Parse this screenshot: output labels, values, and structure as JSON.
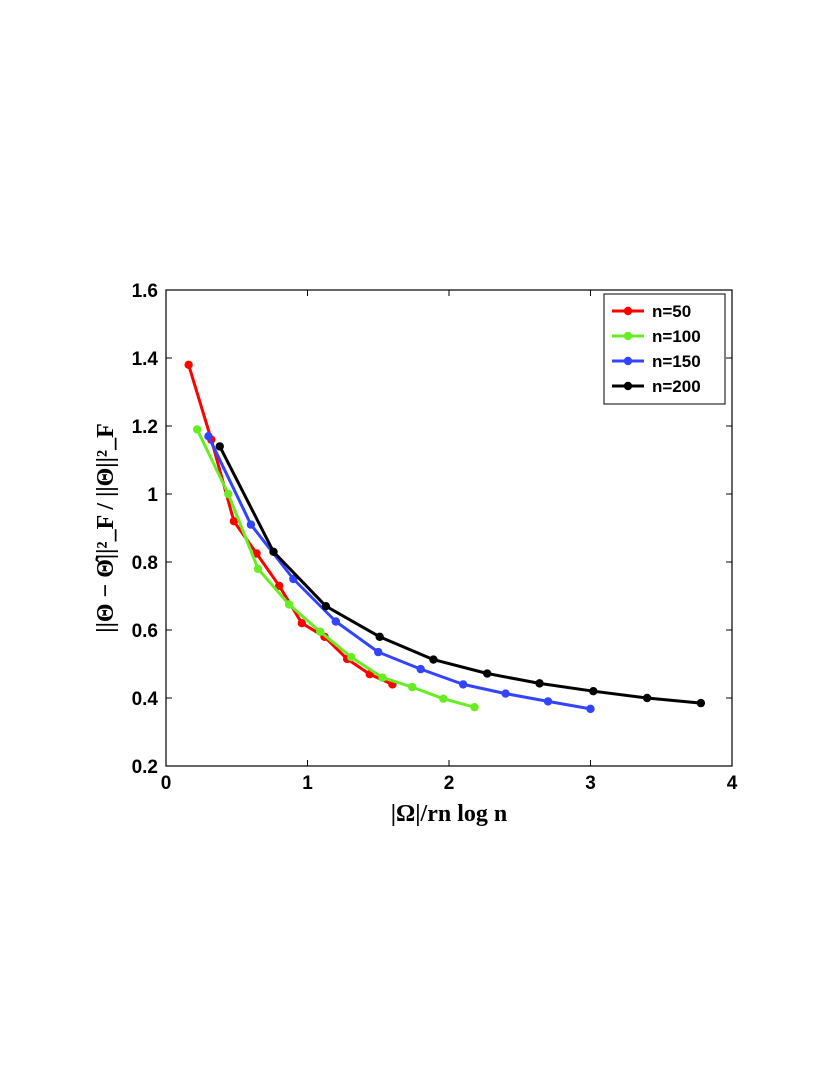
{
  "chart_data": {
    "type": "line",
    "title": "",
    "xlabel": "|Ω|/rn log n",
    "ylabel": "||Θ − Θ̂||²_F / ||Θ||²_F",
    "xlim": [
      0,
      4
    ],
    "ylim": [
      0.2,
      1.6
    ],
    "xticks": [
      0,
      1,
      2,
      3,
      4
    ],
    "xtick_labels": [
      "0",
      "1",
      "2",
      "3",
      "4"
    ],
    "yticks": [
      0.2,
      0.4,
      0.6,
      0.8,
      1.0,
      1.2,
      1.4,
      1.6
    ],
    "ytick_labels": [
      "0.2",
      "0.4",
      "0.6",
      "0.8",
      "1",
      "1.2",
      "1.4",
      "1.6"
    ],
    "grid": false,
    "legend_position": "top-right",
    "series": [
      {
        "name": "n=50",
        "color": "#ff0000",
        "x": [
          0.16,
          0.32,
          0.48,
          0.64,
          0.8,
          0.96,
          1.12,
          1.28,
          1.44,
          1.6
        ],
        "y": [
          1.38,
          1.16,
          0.92,
          0.825,
          0.73,
          0.62,
          0.58,
          0.515,
          0.47,
          0.44
        ]
      },
      {
        "name": "n=100",
        "color": "#66ee22",
        "x": [
          0.22,
          0.44,
          0.65,
          0.87,
          1.09,
          1.31,
          1.53,
          1.74,
          1.96,
          2.18
        ],
        "y": [
          1.19,
          1.0,
          0.78,
          0.675,
          0.595,
          0.52,
          0.46,
          0.432,
          0.398,
          0.373
        ]
      },
      {
        "name": "n=150",
        "color": "#3344ff",
        "x": [
          0.3,
          0.6,
          0.9,
          1.2,
          1.5,
          1.8,
          2.1,
          2.4,
          2.7,
          3.0
        ],
        "y": [
          1.17,
          0.91,
          0.75,
          0.625,
          0.535,
          0.485,
          0.44,
          0.413,
          0.39,
          0.368
        ]
      },
      {
        "name": "n=200",
        "color": "#000000",
        "x": [
          0.38,
          0.76,
          1.13,
          1.51,
          1.89,
          2.27,
          2.64,
          3.02,
          3.4,
          3.78
        ],
        "y": [
          1.14,
          0.83,
          0.67,
          0.58,
          0.513,
          0.472,
          0.443,
          0.42,
          0.4,
          0.385
        ]
      }
    ]
  }
}
